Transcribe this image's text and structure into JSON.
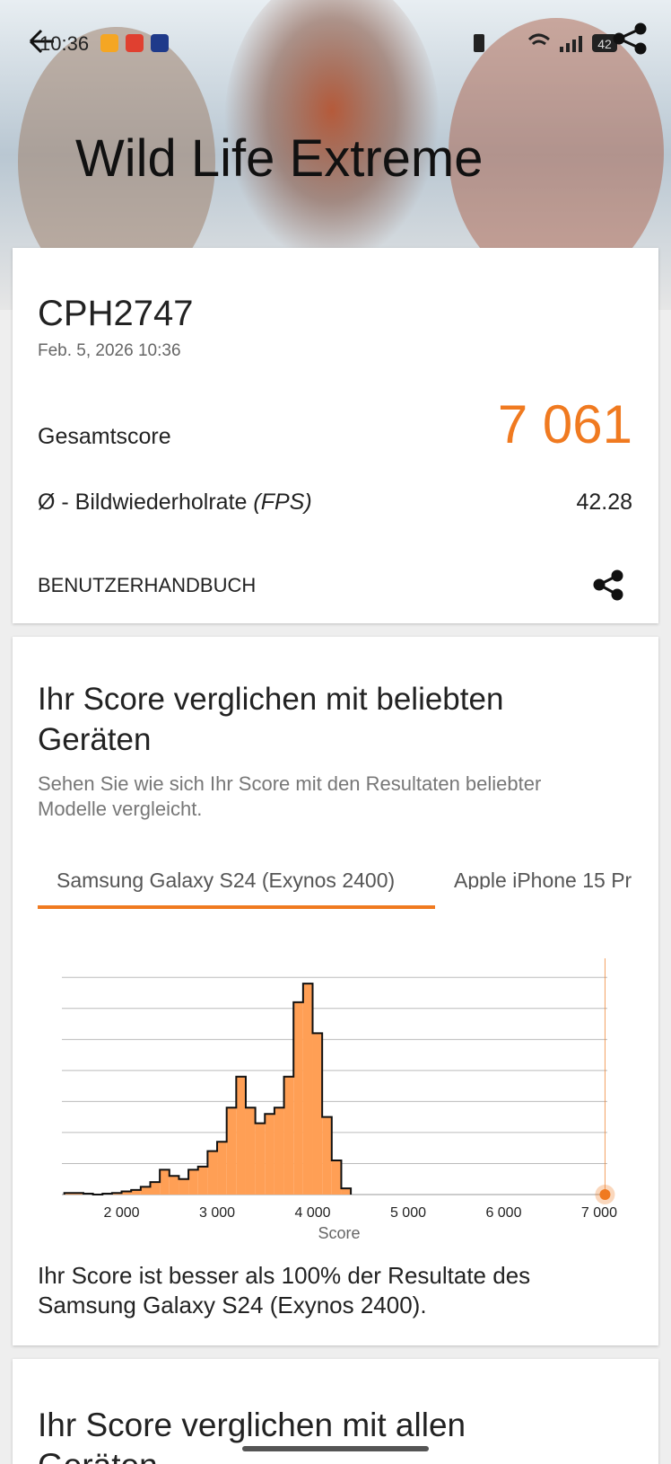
{
  "status_bar": {
    "time": "10:36",
    "battery": "42"
  },
  "header": {
    "title": "Wild Life Extreme"
  },
  "result_card": {
    "device": "CPH2747",
    "date": "Feb. 5, 2026 10:36",
    "score_label": "Gesamtscore",
    "score": "7 061",
    "fps_label": "Ø - Bildwiederholrate",
    "fps_unit": "(FPS)",
    "fps_value": "42.28",
    "manual": "BENUTZERHANDBUCH"
  },
  "comparison_card": {
    "heading": [
      "Ihr Score verglichen mit beliebten",
      "Geräten"
    ],
    "subtitle": [
      "Sehen Sie wie sich Ihr Score mit den Resultaten beliebter",
      "Modelle vergleicht."
    ],
    "tabs": [
      "Samsung Galaxy S24 (Exynos 2400)",
      "Apple iPhone 15 Pr"
    ],
    "result_text": [
      "Ihr Score ist besser als 100% der Resultate des",
      "Samsung Galaxy S24 (Exynos 2400)."
    ]
  },
  "chart_data": {
    "type": "histogram",
    "xlabel": "Score",
    "color": "#ff9f55",
    "highlight_color": "#f07a20",
    "bins": [
      1400,
      1500,
      1600,
      1700,
      1800,
      1900,
      2000,
      2100,
      2200,
      2300,
      2400,
      2500,
      2600,
      2700,
      2800,
      2900,
      3000,
      3100,
      3200,
      3300,
      3400,
      3500,
      3600,
      3700,
      3800,
      3900,
      4000,
      4100,
      4200,
      4300,
      4400
    ],
    "counts": [
      0.05,
      0.05,
      0.03,
      0,
      0.03,
      0.05,
      0.1,
      0.15,
      0.25,
      0.4,
      0.8,
      0.6,
      0.5,
      0.8,
      0.9,
      1.4,
      1.7,
      2.8,
      3.8,
      2.8,
      2.3,
      2.6,
      2.8,
      3.8,
      6.2,
      6.8,
      5.2,
      2.5,
      1.1,
      0.2
    ],
    "highlight": 7061,
    "xlim": [
      1375,
      7085
    ],
    "ylim": [
      0,
      7.5
    ],
    "xticks": [
      {
        "value": 2000,
        "label": "2 000"
      },
      {
        "value": 3000,
        "label": "3 000"
      },
      {
        "value": 4000,
        "label": "4 000"
      },
      {
        "value": 5000,
        "label": "5 000"
      },
      {
        "value": 6000,
        "label": "6 000"
      },
      {
        "value": 7000,
        "label": "7 000"
      }
    ],
    "yticks": [
      0,
      1,
      2,
      3,
      4,
      5,
      6,
      7
    ],
    "grid": true
  },
  "next_card": {
    "heading": [
      "Ihr Score verglichen mit allen",
      "Geräten"
    ]
  }
}
